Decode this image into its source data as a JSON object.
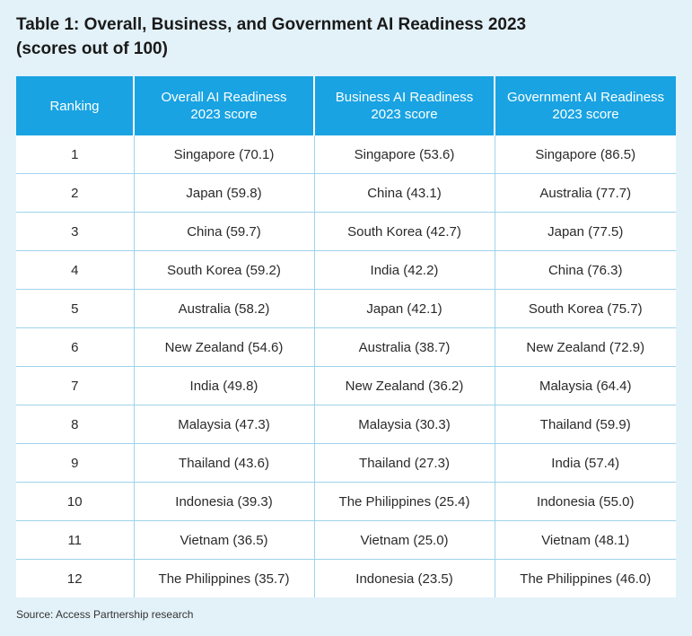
{
  "title": {
    "line1": "Table 1: Overall, Business, and Government AI Readiness 2023",
    "line2": "(scores out of 100)"
  },
  "table": {
    "headers": [
      [
        "Ranking"
      ],
      [
        "Overall AI Readiness",
        "2023 score"
      ],
      [
        "Business AI Readiness",
        "2023 score"
      ],
      [
        "Government AI Readiness",
        "2023 score"
      ]
    ],
    "rows": [
      [
        "1",
        "Singapore (70.1)",
        "Singapore (53.6)",
        "Singapore (86.5)"
      ],
      [
        "2",
        "Japan (59.8)",
        "China (43.1)",
        "Australia (77.7)"
      ],
      [
        "3",
        "China (59.7)",
        "South Korea (42.7)",
        "Japan (77.5)"
      ],
      [
        "4",
        "South Korea (59.2)",
        "India (42.2)",
        "China (76.3)"
      ],
      [
        "5",
        "Australia (58.2)",
        "Japan (42.1)",
        "South Korea (75.7)"
      ],
      [
        "6",
        "New Zealand (54.6)",
        "Australia (38.7)",
        "New Zealand (72.9)"
      ],
      [
        "7",
        "India (49.8)",
        "New Zealand (36.2)",
        "Malaysia (64.4)"
      ],
      [
        "8",
        "Malaysia (47.3)",
        "Malaysia (30.3)",
        "Thailand (59.9)"
      ],
      [
        "9",
        "Thailand (43.6)",
        "Thailand (27.3)",
        "India (57.4)"
      ],
      [
        "10",
        "Indonesia (39.3)",
        "The Philippines (25.4)",
        "Indonesia (55.0)"
      ],
      [
        "11",
        "Vietnam (36.5)",
        "Vietnam (25.0)",
        "Vietnam (48.1)"
      ],
      [
        "12",
        "The Philippines (35.7)",
        "Indonesia (23.5)",
        "The Philippines (46.0)"
      ]
    ]
  },
  "source": "Source: Access Partnership research",
  "colors": {
    "background": "#e3f2f9",
    "header": "#19a3e2",
    "grid": "#9fd3ea"
  }
}
